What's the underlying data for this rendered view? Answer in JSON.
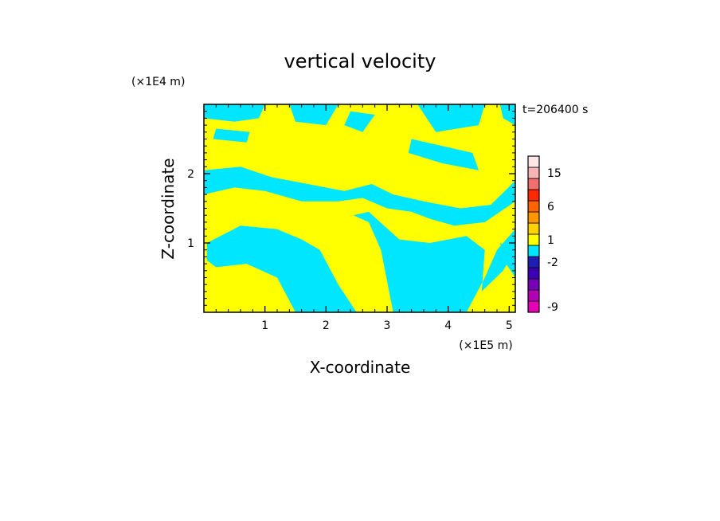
{
  "chart_data": {
    "type": "heatmap",
    "title": "vertical velocity",
    "xlabel": "X-coordinate",
    "ylabel": "Z-coordinate",
    "x_unit": "(×1E5 m)",
    "y_unit": "(×1E4 m)",
    "time_label": "t=206400 s",
    "xlim": [
      0,
      5.1
    ],
    "ylim": [
      0,
      3.0
    ],
    "x_ticks": [
      {
        "value": 1,
        "label": "1"
      },
      {
        "value": 2,
        "label": "2"
      },
      {
        "value": 3,
        "label": "3"
      },
      {
        "value": 4,
        "label": "4"
      },
      {
        "value": 5,
        "label": "5"
      }
    ],
    "y_ticks": [
      {
        "value": 1,
        "label": "1"
      },
      {
        "value": 2,
        "label": "2"
      }
    ],
    "colorbar": {
      "levels": [
        {
          "color": "#e600b4",
          "label": "-9"
        },
        {
          "color": "#b400b4",
          "label": ""
        },
        {
          "color": "#7800b4",
          "label": ""
        },
        {
          "color": "#3c00b4",
          "label": ""
        },
        {
          "color": "#1e1eb4",
          "label": "-2"
        },
        {
          "color": "#00e6ff",
          "label": ""
        },
        {
          "color": "#ffff00",
          "label": "1"
        },
        {
          "color": "#ffd200",
          "label": ""
        },
        {
          "color": "#ff9600",
          "label": ""
        },
        {
          "color": "#ff6400",
          "label": "6"
        },
        {
          "color": "#ff2800",
          "label": ""
        },
        {
          "color": "#f07070",
          "label": ""
        },
        {
          "color": "#f8b4b4",
          "label": "15"
        },
        {
          "color": "#fde6e6",
          "label": ""
        }
      ]
    },
    "field_colors": {
      "updraft": "#ffff00",
      "downdraft": "#00e6ff"
    },
    "approximate_field_regions": [
      {
        "sign": "negative",
        "points": [
          [
            0.0,
            3.0
          ],
          [
            1.0,
            3.0
          ],
          [
            0.9,
            2.8
          ],
          [
            0.5,
            2.75
          ],
          [
            0.0,
            2.8
          ]
        ]
      },
      {
        "sign": "negative",
        "points": [
          [
            1.4,
            3.0
          ],
          [
            2.2,
            3.0
          ],
          [
            2.0,
            2.7
          ],
          [
            1.5,
            2.75
          ]
        ]
      },
      {
        "sign": "negative",
        "points": [
          [
            3.5,
            3.0
          ],
          [
            4.6,
            3.0
          ],
          [
            4.5,
            2.7
          ],
          [
            3.8,
            2.6
          ]
        ]
      },
      {
        "sign": "negative",
        "points": [
          [
            4.85,
            3.0
          ],
          [
            5.1,
            3.0
          ],
          [
            5.1,
            2.7
          ],
          [
            4.9,
            2.8
          ]
        ]
      },
      {
        "sign": "negative",
        "points": [
          [
            2.4,
            2.9
          ],
          [
            2.8,
            2.85
          ],
          [
            2.6,
            2.6
          ],
          [
            2.3,
            2.7
          ]
        ]
      },
      {
        "sign": "negative",
        "points": [
          [
            3.4,
            2.5
          ],
          [
            4.4,
            2.3
          ],
          [
            4.5,
            2.05
          ],
          [
            3.9,
            2.15
          ],
          [
            3.35,
            2.3
          ]
        ]
      },
      {
        "sign": "negative",
        "points": [
          [
            0.2,
            2.65
          ],
          [
            0.75,
            2.6
          ],
          [
            0.7,
            2.45
          ],
          [
            0.15,
            2.5
          ]
        ]
      },
      {
        "sign": "negative",
        "points": [
          [
            0.0,
            2.05
          ],
          [
            0.6,
            2.1
          ],
          [
            1.1,
            1.95
          ],
          [
            1.7,
            1.85
          ],
          [
            2.3,
            1.75
          ],
          [
            2.75,
            1.85
          ],
          [
            3.1,
            1.7
          ],
          [
            3.6,
            1.6
          ],
          [
            4.2,
            1.5
          ],
          [
            4.7,
            1.55
          ],
          [
            5.1,
            1.9
          ],
          [
            5.1,
            1.6
          ],
          [
            4.6,
            1.3
          ],
          [
            4.1,
            1.25
          ],
          [
            3.7,
            1.35
          ],
          [
            3.4,
            1.45
          ],
          [
            3.0,
            1.5
          ],
          [
            2.6,
            1.65
          ],
          [
            2.2,
            1.6
          ],
          [
            1.6,
            1.6
          ],
          [
            1.0,
            1.75
          ],
          [
            0.5,
            1.8
          ],
          [
            0.0,
            1.7
          ]
        ]
      },
      {
        "sign": "negative",
        "points": [
          [
            0.05,
            1.0
          ],
          [
            0.6,
            1.25
          ],
          [
            1.2,
            1.2
          ],
          [
            1.6,
            1.05
          ],
          [
            1.9,
            0.9
          ],
          [
            2.2,
            0.4
          ],
          [
            2.5,
            0.0
          ],
          [
            1.5,
            0.0
          ],
          [
            1.2,
            0.5
          ],
          [
            0.7,
            0.7
          ],
          [
            0.2,
            0.65
          ],
          [
            0.05,
            0.75
          ]
        ]
      },
      {
        "sign": "negative",
        "points": [
          [
            2.45,
            1.4
          ],
          [
            2.7,
            1.3
          ],
          [
            2.9,
            0.9
          ],
          [
            3.1,
            0.0
          ],
          [
            4.3,
            0.0
          ],
          [
            4.6,
            0.5
          ],
          [
            4.8,
            0.9
          ],
          [
            5.1,
            1.2
          ],
          [
            5.1,
            0.9
          ],
          [
            4.9,
            0.6
          ],
          [
            4.55,
            0.3
          ],
          [
            4.6,
            0.9
          ],
          [
            4.3,
            1.1
          ],
          [
            3.7,
            1.0
          ],
          [
            3.2,
            1.05
          ],
          [
            2.7,
            1.45
          ]
        ]
      },
      {
        "sign": "negative",
        "points": [
          [
            4.85,
            1.0
          ],
          [
            5.1,
            0.9
          ],
          [
            5.1,
            0.5
          ],
          [
            4.95,
            0.7
          ]
        ]
      }
    ]
  }
}
